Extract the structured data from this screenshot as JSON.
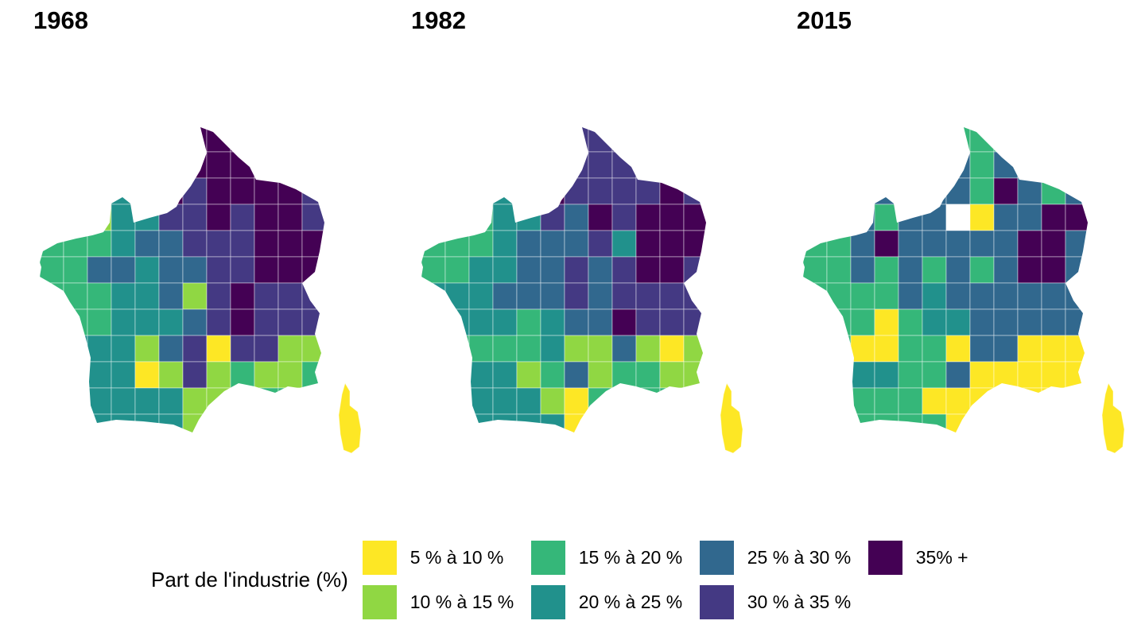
{
  "page": {
    "background": "#FFFFFF",
    "panel_background": "#FFFFFF"
  },
  "legend": {
    "title": "Part de l'industrie (%)",
    "items": [
      {
        "label": "5 % à 10 %",
        "color": "#FDE725"
      },
      {
        "label": "10 % à 15 %",
        "color": "#90D743"
      },
      {
        "label": "15 % à 20 %",
        "color": "#35B779"
      },
      {
        "label": "20 % à 25 %",
        "color": "#21918C"
      },
      {
        "label": "25 % à 30 %",
        "color": "#31688E"
      },
      {
        "label": "30 % à 35 %",
        "color": "#443983"
      },
      {
        "label": "35% +",
        "color": "#440154"
      }
    ]
  },
  "chart_data": {
    "type": "choropleth",
    "title": "",
    "legend_title": "Part de l'industrie (%)",
    "legend_position": "bottom",
    "palette_name": "viridis reversed (low=yellow, high=dark purple)",
    "no_data_color": "#FFFFFF",
    "bins": [
      {
        "index": 0,
        "label": "5 % à 10 %",
        "min": 5,
        "max": 10,
        "color": "#FDE725"
      },
      {
        "index": 1,
        "label": "10 % à 15 %",
        "min": 10,
        "max": 15,
        "color": "#90D743"
      },
      {
        "index": 2,
        "label": "15 % à 20 %",
        "min": 15,
        "max": 20,
        "color": "#35B779"
      },
      {
        "index": 3,
        "label": "20 % à 25 %",
        "min": 20,
        "max": 25,
        "color": "#21918C"
      },
      {
        "index": 4,
        "label": "25 % à 30 %",
        "min": 25,
        "max": 30,
        "color": "#31688E"
      },
      {
        "index": 5,
        "label": "30 % à 35 %",
        "min": 30,
        "max": 35,
        "color": "#443983"
      },
      {
        "index": 6,
        "label": "35% +",
        "min": 35,
        "max": null,
        "color": "#440154"
      }
    ],
    "grid_encoding": "Each facet is a 12x12 mosaic (west to east, north to south) clipped to the France outline; each character is a bin index 0 (5-10%) to 6 (35%+), 'w' = no data (white, Paris area 2015). Corsica is bin 0 (yellow) in every facet.",
    "corsica_bin": 0,
    "facets": [
      {
        "year": "1968",
        "grid": [
          "666666666666",
          "666666666666",
          "333336566665",
          "111335565665",
          "222344555666",
          "224434455666",
          "222334156555",
          "222333456555",
          "333314505511",
          "333301512112",
          "333333113222",
          "333333122222"
        ]
      },
      {
        "year": "1982",
        "grid": [
          "555555555555",
          "555555555555",
          "333336555565",
          "222335465666",
          "222344453666",
          "223344545665",
          "333444545555",
          "333323446555",
          "222223114101",
          "333312412211",
          "333331023222",
          "333333002222"
        ]
      },
      {
        "year": "2015",
        "grid": [
          "222222222222",
          "222222424422",
          "224444426424",
          "224244w04466",
          "224644444664",
          "224242424664",
          "222243444444",
          "222023344444",
          "220022044000",
          "223322400000",
          "222220000000",
          "222222000000"
        ]
      }
    ]
  }
}
